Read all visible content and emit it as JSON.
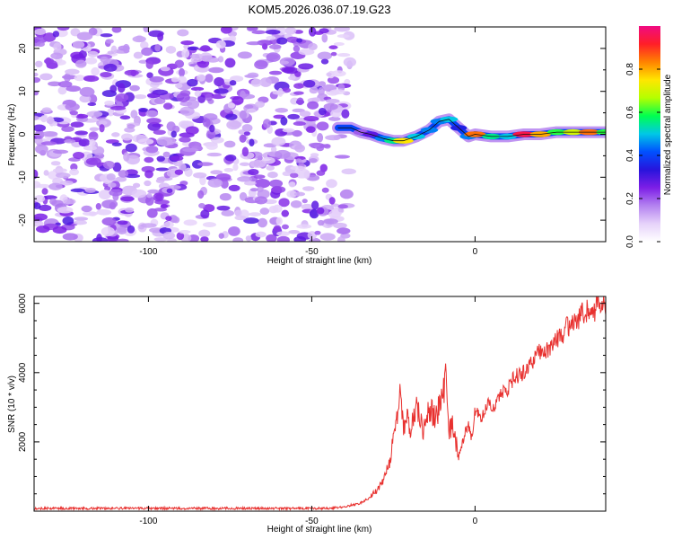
{
  "title": "KOM5.2026.036.07.19.G23",
  "chart_data": [
    {
      "type": "heatmap",
      "name": "spectrogram",
      "xlabel": "Height of straight line (km)",
      "ylabel": "Frequency (Hz)",
      "xlim": [
        -135,
        40
      ],
      "ylim": [
        -25,
        25
      ],
      "xticks": [
        -100,
        -50,
        0
      ],
      "yticks": [
        -20,
        -10,
        0,
        10,
        20
      ],
      "colorbar": {
        "label": "Normalized spectral amplitude",
        "range": [
          0,
          1
        ],
        "ticks": [
          "0.0",
          "0.2",
          "0.4",
          "0.6",
          "0.8"
        ],
        "colors": [
          "#ffffff",
          "#e6d2fa",
          "#b482f0",
          "#7d1ee6",
          "#2814dc",
          "#0050ff",
          "#00c8e6",
          "#00ff50",
          "#b4ff00",
          "#ffe600",
          "#ff8200",
          "#ff1e28",
          "#f00a82"
        ]
      },
      "noise_region_x": [
        -135,
        -40
      ],
      "signal_track": {
        "x": [
          -42,
          -38,
          -35,
          -32,
          -28,
          -25,
          -22,
          -18,
          -14,
          -11,
          -8,
          -5,
          -2,
          0,
          5,
          10,
          15,
          20,
          25,
          30,
          35,
          40
        ],
        "freq": [
          1.5,
          1.5,
          0.5,
          0,
          -1,
          -1.5,
          -1.5,
          -0.5,
          1,
          3,
          3.5,
          1.5,
          -0.5,
          0,
          -0.5,
          -0.5,
          0,
          0,
          0.5,
          0.5,
          0.5,
          0.5
        ],
        "amplitude": [
          0.12,
          0.15,
          0.2,
          0.28,
          0.45,
          0.55,
          0.75,
          0.5,
          0.45,
          0.45,
          0.5,
          0.35,
          0.45,
          0.85,
          0.55,
          0.5,
          0.95,
          0.8,
          0.6,
          0.7,
          0.85,
          0.6
        ]
      }
    },
    {
      "type": "line",
      "name": "snr",
      "xlabel": "Height of straight line (km)",
      "ylabel": "SNR (10 * v/v)",
      "xlim": [
        -135,
        40
      ],
      "ylim": [
        0,
        6200
      ],
      "xticks": [
        -100,
        -50,
        0
      ],
      "yticks": [
        2000,
        4000,
        6000
      ],
      "color": "#e8312f",
      "series": [
        {
          "name": "SNR",
          "x": [
            -135,
            -120,
            -100,
            -80,
            -60,
            -45,
            -40,
            -38,
            -36,
            -34,
            -32,
            -30,
            -28,
            -26,
            -24,
            -23,
            -22,
            -21,
            -20,
            -18,
            -16,
            -14,
            -12,
            -10,
            -9,
            -8,
            -7,
            -6,
            -5,
            -4,
            -3,
            -2,
            -1,
            0,
            2,
            4,
            6,
            8,
            10,
            12,
            14,
            16,
            18,
            20,
            22,
            24,
            26,
            28,
            30,
            32,
            34,
            36,
            38,
            40
          ],
          "y": [
            80,
            80,
            80,
            80,
            80,
            80,
            120,
            180,
            200,
            280,
            450,
            600,
            900,
            1500,
            2600,
            3400,
            2400,
            2800,
            2300,
            3100,
            2300,
            2900,
            2700,
            3300,
            3800,
            2200,
            2600,
            2000,
            1700,
            1900,
            2300,
            2500,
            2100,
            2900,
            2700,
            3100,
            3000,
            3400,
            3500,
            3900,
            3900,
            4200,
            4400,
            4600,
            4600,
            4900,
            5000,
            5300,
            5400,
            5600,
            5800,
            5700,
            6000,
            6000
          ]
        }
      ]
    }
  ]
}
